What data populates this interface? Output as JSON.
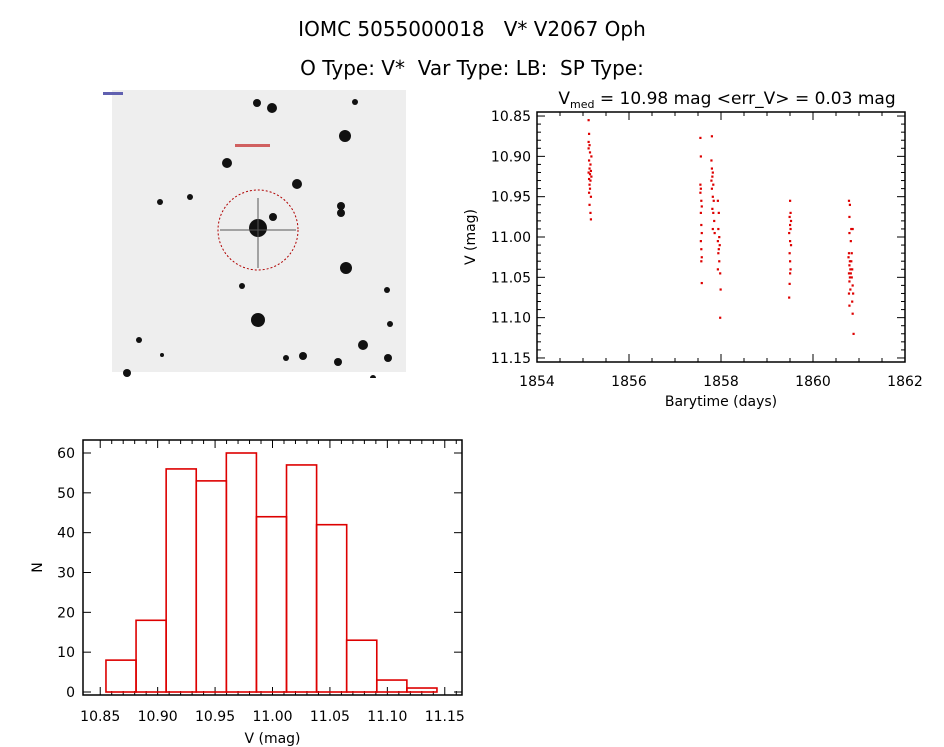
{
  "header": {
    "title": "IOMC 5055000018   V* V2067 Oph",
    "subtitle": "O Type: V*  Var Type: LB:  SP Type:"
  },
  "image_panel": {
    "description_marker": "target-circle"
  },
  "chart_data": [
    {
      "type": "scatter",
      "title_main": "V",
      "title_sub": "med",
      "title_rest": " = 10.98 mag <err_V> = 0.03 mag",
      "xlabel": "Barytime (days)",
      "ylabel": "V (mag)",
      "xlim": [
        1854,
        1862
      ],
      "ylim": [
        11.15,
        10.85
      ],
      "xticks": [
        "1854",
        "1856",
        "1858",
        "1860",
        "1862"
      ],
      "yticks": [
        "10.85",
        "10.90",
        "10.95",
        "11.00",
        "11.05",
        "11.10",
        "11.15"
      ],
      "color": "#dd0000",
      "points": [
        [
          1855.12,
          10.855
        ],
        [
          1855.13,
          10.872
        ],
        [
          1855.12,
          10.882
        ],
        [
          1855.14,
          10.886
        ],
        [
          1855.12,
          10.89
        ],
        [
          1855.15,
          10.895
        ],
        [
          1855.18,
          10.9
        ],
        [
          1855.13,
          10.905
        ],
        [
          1855.16,
          10.91
        ],
        [
          1855.14,
          10.915
        ],
        [
          1855.17,
          10.918
        ],
        [
          1855.12,
          10.92
        ],
        [
          1855.15,
          10.922
        ],
        [
          1855.18,
          10.925
        ],
        [
          1855.13,
          10.928
        ],
        [
          1855.16,
          10.93
        ],
        [
          1855.14,
          10.935
        ],
        [
          1855.15,
          10.94
        ],
        [
          1855.13,
          10.945
        ],
        [
          1855.17,
          10.95
        ],
        [
          1855.14,
          10.96
        ],
        [
          1855.16,
          10.97
        ],
        [
          1855.17,
          10.978
        ],
        [
          1857.55,
          10.877
        ],
        [
          1857.56,
          10.9
        ],
        [
          1857.55,
          10.935
        ],
        [
          1857.56,
          10.94
        ],
        [
          1857.55,
          10.945
        ],
        [
          1857.57,
          10.955
        ],
        [
          1857.58,
          10.962
        ],
        [
          1857.56,
          10.97
        ],
        [
          1857.57,
          10.985
        ],
        [
          1857.58,
          10.995
        ],
        [
          1857.56,
          11.005
        ],
        [
          1857.57,
          11.015
        ],
        [
          1857.58,
          11.025
        ],
        [
          1857.57,
          11.03
        ],
        [
          1857.58,
          11.057
        ],
        [
          1857.8,
          10.875
        ],
        [
          1857.79,
          10.905
        ],
        [
          1857.8,
          10.915
        ],
        [
          1857.82,
          10.92
        ],
        [
          1857.81,
          10.925
        ],
        [
          1857.79,
          10.93
        ],
        [
          1857.83,
          10.935
        ],
        [
          1857.8,
          10.94
        ],
        [
          1857.82,
          10.95
        ],
        [
          1857.84,
          10.955
        ],
        [
          1857.81,
          10.965
        ],
        [
          1857.83,
          10.97
        ],
        [
          1857.85,
          10.98
        ],
        [
          1857.82,
          10.99
        ],
        [
          1857.86,
          10.995
        ],
        [
          1857.93,
          10.955
        ],
        [
          1857.95,
          10.97
        ],
        [
          1857.94,
          10.99
        ],
        [
          1857.96,
          11.0
        ],
        [
          1857.93,
          11.005
        ],
        [
          1857.97,
          11.01
        ],
        [
          1857.95,
          11.015
        ],
        [
          1857.94,
          11.02
        ],
        [
          1857.96,
          11.03
        ],
        [
          1857.93,
          11.04
        ],
        [
          1857.98,
          11.045
        ],
        [
          1857.99,
          11.065
        ],
        [
          1857.98,
          11.1
        ],
        [
          1859.5,
          10.955
        ],
        [
          1859.51,
          10.97
        ],
        [
          1859.49,
          10.975
        ],
        [
          1859.52,
          10.98
        ],
        [
          1859.5,
          10.985
        ],
        [
          1859.51,
          10.99
        ],
        [
          1859.48,
          10.995
        ],
        [
          1859.5,
          11.005
        ],
        [
          1859.52,
          11.01
        ],
        [
          1859.49,
          11.02
        ],
        [
          1859.5,
          11.03
        ],
        [
          1859.51,
          11.04
        ],
        [
          1859.5,
          11.045
        ],
        [
          1859.49,
          11.058
        ],
        [
          1859.48,
          11.075
        ],
        [
          1860.78,
          10.955
        ],
        [
          1860.8,
          10.96
        ],
        [
          1860.79,
          10.975
        ],
        [
          1860.83,
          10.99
        ],
        [
          1860.86,
          10.99
        ],
        [
          1860.79,
          10.995
        ],
        [
          1860.82,
          11.005
        ],
        [
          1860.78,
          11.02
        ],
        [
          1860.84,
          11.02
        ],
        [
          1860.77,
          11.025
        ],
        [
          1860.8,
          11.03
        ],
        [
          1860.83,
          11.03
        ],
        [
          1860.79,
          11.035
        ],
        [
          1860.81,
          11.04
        ],
        [
          1860.85,
          11.04
        ],
        [
          1860.78,
          11.045
        ],
        [
          1860.82,
          11.045
        ],
        [
          1860.8,
          11.05
        ],
        [
          1860.84,
          11.05
        ],
        [
          1860.79,
          11.055
        ],
        [
          1860.86,
          11.06
        ],
        [
          1860.81,
          11.065
        ],
        [
          1860.78,
          11.07
        ],
        [
          1860.87,
          11.07
        ],
        [
          1860.85,
          11.08
        ],
        [
          1860.79,
          11.085
        ],
        [
          1860.86,
          11.095
        ],
        [
          1860.88,
          11.12
        ]
      ]
    },
    {
      "type": "bar",
      "subtype": "histogram",
      "xlabel": "V (mag)",
      "ylabel": "N",
      "xlim": [
        10.835,
        11.165
      ],
      "ylim": [
        0,
        63
      ],
      "xticks": [
        "10.85",
        "10.90",
        "10.95",
        "11.00",
        "11.05",
        "11.10",
        "11.15"
      ],
      "yticks": [
        "0",
        "10",
        "20",
        "30",
        "40",
        "50",
        "60"
      ],
      "bin_start": 10.855,
      "bin_width": 0.0262,
      "values": [
        8,
        18,
        56,
        53,
        60,
        44,
        57,
        42,
        13,
        3,
        1
      ],
      "color": "#dd0000"
    }
  ]
}
